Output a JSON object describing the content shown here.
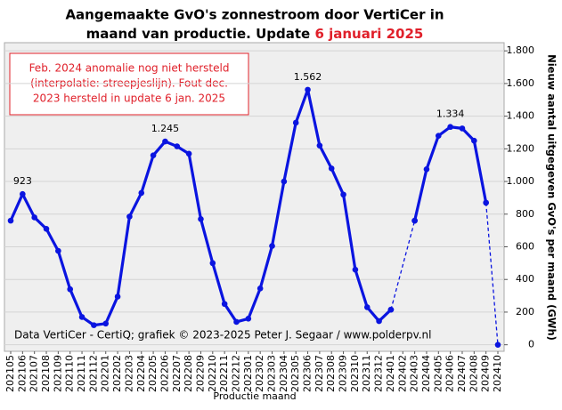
{
  "chart_data": {
    "type": "line",
    "title_line1": "Aangemaakte GvO's zonnestroom door VertiCer in",
    "title_line2": "maand van productie. Update ",
    "title_highlight": "6 januari 2025",
    "annotation": [
      "Feb. 2024 anomalie nog niet hersteld",
      "(interpolatie: streepjeslijn). Fout dec.",
      "2023 hersteld in update 6 jan. 2025"
    ],
    "credit": "Data VertiCer - CertiQ; grafiek © 2023-2025 Peter J. Segaar / www.polderpv.nl",
    "xlabel": "Productie maand",
    "ylabel": "Nieuw aantal uitgegeven GvO's per maand (GWh)",
    "categories": [
      "202105",
      "202106",
      "202107",
      "202108",
      "202109",
      "202110",
      "202111",
      "202112",
      "202201",
      "202202",
      "202203",
      "202204",
      "202205",
      "202206",
      "202207",
      "202208",
      "202209",
      "202210",
      "202211",
      "202212",
      "202301",
      "202302",
      "202303",
      "202304",
      "202305",
      "202306",
      "202307",
      "202308",
      "202309",
      "202310",
      "202311",
      "202312",
      "202401",
      "202402",
      "202403",
      "202404",
      "202405",
      "202406",
      "202407",
      "202408",
      "202409",
      "202410"
    ],
    "series": [
      {
        "color": "#0a14e0",
        "style": "solid",
        "values": [
          760,
          923,
          780,
          710,
          575,
          340,
          170,
          120,
          130,
          295,
          785,
          930,
          1160,
          1245,
          1215,
          1170,
          770,
          500,
          250,
          140,
          160,
          345,
          605,
          1000,
          1360,
          1562,
          1220,
          1080,
          920,
          460,
          230,
          145,
          215,
          null,
          760,
          1075,
          1280,
          1334,
          1325,
          1250,
          870,
          null
        ],
        "value_labels": [
          null,
          "923",
          null,
          null,
          null,
          null,
          null,
          null,
          null,
          null,
          null,
          null,
          null,
          "1.245",
          null,
          null,
          null,
          null,
          null,
          null,
          null,
          null,
          null,
          null,
          null,
          "1.562",
          null,
          null,
          null,
          null,
          null,
          null,
          null,
          null,
          null,
          null,
          null,
          "1.334",
          null,
          null,
          null,
          null
        ]
      },
      {
        "color": "#0a14e0",
        "style": "dashed",
        "x": [
          "202401",
          "202403"
        ],
        "values": [
          215,
          760
        ]
      },
      {
        "color": "#0a14e0",
        "style": "dashed",
        "x": [
          "202409",
          "202410"
        ],
        "values": [
          870,
          0
        ]
      }
    ],
    "ylim": [
      -40,
      1850
    ],
    "yticks": [
      0,
      200,
      400,
      600,
      800,
      {
        "value": 1000,
        "label": "1.000"
      },
      {
        "value": 1200,
        "label": "1.200"
      },
      {
        "value": 1400,
        "label": "1.400"
      },
      {
        "value": 1600,
        "label": "1.600"
      },
      {
        "value": 1800,
        "label": "1.800"
      }
    ],
    "grid": true,
    "background": "#efefef"
  }
}
